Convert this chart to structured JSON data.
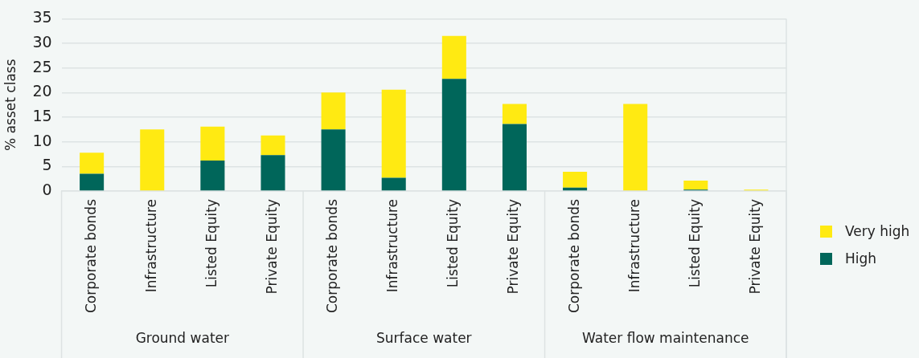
{
  "chart_data": {
    "type": "bar",
    "stacked": true,
    "ylabel": "% asset class",
    "categories": [
      "Corporate bonds",
      "Infrastructure",
      "Listed Equity",
      "Private Equity",
      "Corporate bonds",
      "Infrastructure",
      "Listed Equity",
      "Private Equity",
      "Corporate bonds",
      "Infrastructure",
      "Listed Equity",
      "Private Equity"
    ],
    "series": [
      {
        "name": "High",
        "color": "#00665a",
        "values": [
          3.5,
          0,
          6.2,
          7.3,
          12.5,
          2.7,
          22.8,
          13.6,
          0.7,
          0,
          0.3,
          0
        ]
      },
      {
        "name": "Very high",
        "color": "#ffea12",
        "values": [
          4.3,
          12.5,
          6.9,
          4.0,
          7.5,
          17.9,
          8.7,
          4.1,
          3.2,
          17.7,
          1.8,
          0.3
        ]
      }
    ],
    "annotations": [
      "Ground water",
      "Surface water",
      "Water flow maintenance"
    ],
    "ylim": [
      0,
      35
    ],
    "yticks": [
      0,
      5,
      10,
      15,
      20,
      25,
      30,
      35
    ],
    "grid": "y",
    "legend": "right"
  }
}
